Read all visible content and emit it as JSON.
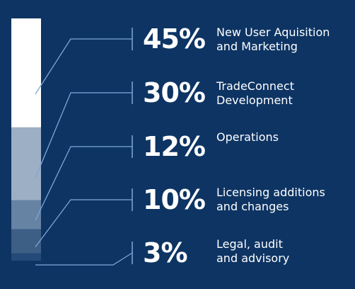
{
  "chart_data": {
    "type": "bar",
    "orientation": "stacked-vertical",
    "categories": [
      "New User Aquisition\nand Marketing",
      "TradeConnect\nDevelopment",
      "Operations",
      "Licensing additions\nand changes",
      "Legal, audit\nand advisory"
    ],
    "values": [
      45,
      30,
      12,
      10,
      3
    ],
    "value_labels": [
      "45%",
      "30%",
      "12%",
      "10%",
      "3%"
    ],
    "unit": "%",
    "colors": {
      "background": "#0d3463",
      "segments": [
        "#ffffff",
        "#9dafc4",
        "#6683a4",
        "#3d5f86",
        "#244a78"
      ],
      "connector": "#7fa6d8"
    }
  }
}
